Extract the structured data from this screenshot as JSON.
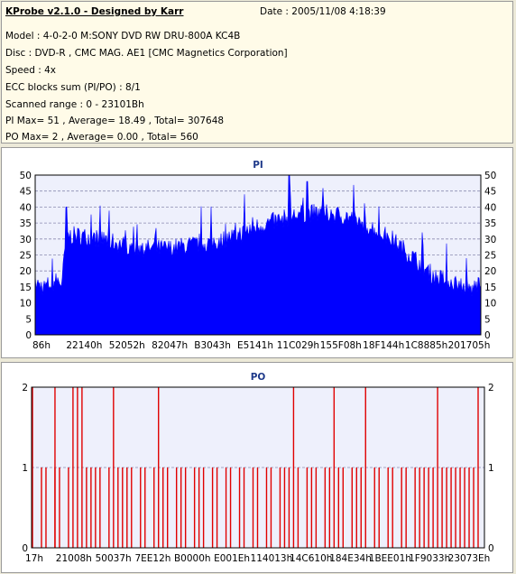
{
  "header": {
    "title": "KProbe v2.1.0 - Designed by Karr",
    "date": "Date : 2005/11/08 4:18:39",
    "lines": [
      "Model : 4-0-2-0 M:SONY    DVD RW DRU-800A  KC4B",
      "Disc : DVD-R , CMC MAG. AE1 [CMC Magnetics Corporation]",
      "Speed : 4x",
      "ECC blocks sum (PI/PO) : 8/1",
      "Scanned range : 0 - 23101Bh",
      "PI Max= 51 , Average= 18.49 , Total= 307648",
      "PO Max= 2 , Average= 0.00 , Total= 560"
    ]
  },
  "colors": {
    "pi_fill": "#0000ff",
    "po_bar": "#e00000",
    "plot_bg": "#eef0fc",
    "grid": "#8a8ab0",
    "title": "#1f3a8a"
  },
  "chart_data": [
    {
      "type": "area",
      "title": "PI",
      "ylim": [
        0,
        50
      ],
      "yticks": [
        0,
        5,
        10,
        15,
        20,
        25,
        30,
        35,
        40,
        45,
        50
      ],
      "xticks": [
        "86h",
        "22140h",
        "52052h",
        "82047h",
        "B3043h",
        "E5141h",
        "11C029h",
        "155F08h",
        "18F144h",
        "1C8885h",
        "201705h"
      ],
      "grid": true,
      "x_norm": [
        0,
        0.02,
        0.05,
        0.06,
        0.07,
        0.1,
        0.15,
        0.2,
        0.25,
        0.3,
        0.35,
        0.4,
        0.45,
        0.5,
        0.55,
        0.6,
        0.65,
        0.7,
        0.75,
        0.8,
        0.85,
        0.88,
        0.9,
        0.95,
        0.98,
        1.0
      ],
      "values": [
        16,
        15,
        17,
        16,
        31,
        31,
        30,
        28,
        27,
        27,
        28,
        29,
        31,
        34,
        36,
        38,
        38,
        37,
        34,
        30,
        24,
        20,
        18,
        16,
        14,
        17
      ],
      "peaks": [
        {
          "x_norm": 0.57,
          "value": 51
        },
        {
          "x_norm": 0.61,
          "value": 48
        },
        {
          "x_norm": 0.47,
          "value": 44
        },
        {
          "x_norm": 0.07,
          "value": 40
        }
      ]
    },
    {
      "type": "bar",
      "title": "PO",
      "ylim": [
        0,
        2
      ],
      "yticks": [
        0,
        1,
        2
      ],
      "xticks": [
        "17h",
        "21008h",
        "50037h",
        "7EE12h",
        "B0000h",
        "E001Eh",
        "114013h",
        "14C610h",
        "184E34h",
        "1BEE01h",
        "1F9033h",
        "23073Eh"
      ],
      "grid": true,
      "x_norm_value2": [
        0.0,
        0.05,
        0.09,
        0.1,
        0.11,
        0.18,
        0.28,
        0.58,
        0.67,
        0.74,
        0.9,
        0.99
      ],
      "x_norm_value1": [
        0.02,
        0.03,
        0.05,
        0.06,
        0.08,
        0.12,
        0.13,
        0.14,
        0.15,
        0.17,
        0.19,
        0.2,
        0.21,
        0.22,
        0.24,
        0.25,
        0.27,
        0.29,
        0.3,
        0.32,
        0.33,
        0.34,
        0.36,
        0.37,
        0.38,
        0.4,
        0.41,
        0.43,
        0.44,
        0.46,
        0.47,
        0.49,
        0.5,
        0.52,
        0.53,
        0.55,
        0.56,
        0.57,
        0.59,
        0.61,
        0.62,
        0.63,
        0.65,
        0.66,
        0.68,
        0.69,
        0.71,
        0.72,
        0.73,
        0.76,
        0.77,
        0.79,
        0.8,
        0.82,
        0.83,
        0.85,
        0.86,
        0.87,
        0.88,
        0.89,
        0.91,
        0.92,
        0.93,
        0.94,
        0.95,
        0.96,
        0.97,
        0.98
      ]
    }
  ]
}
